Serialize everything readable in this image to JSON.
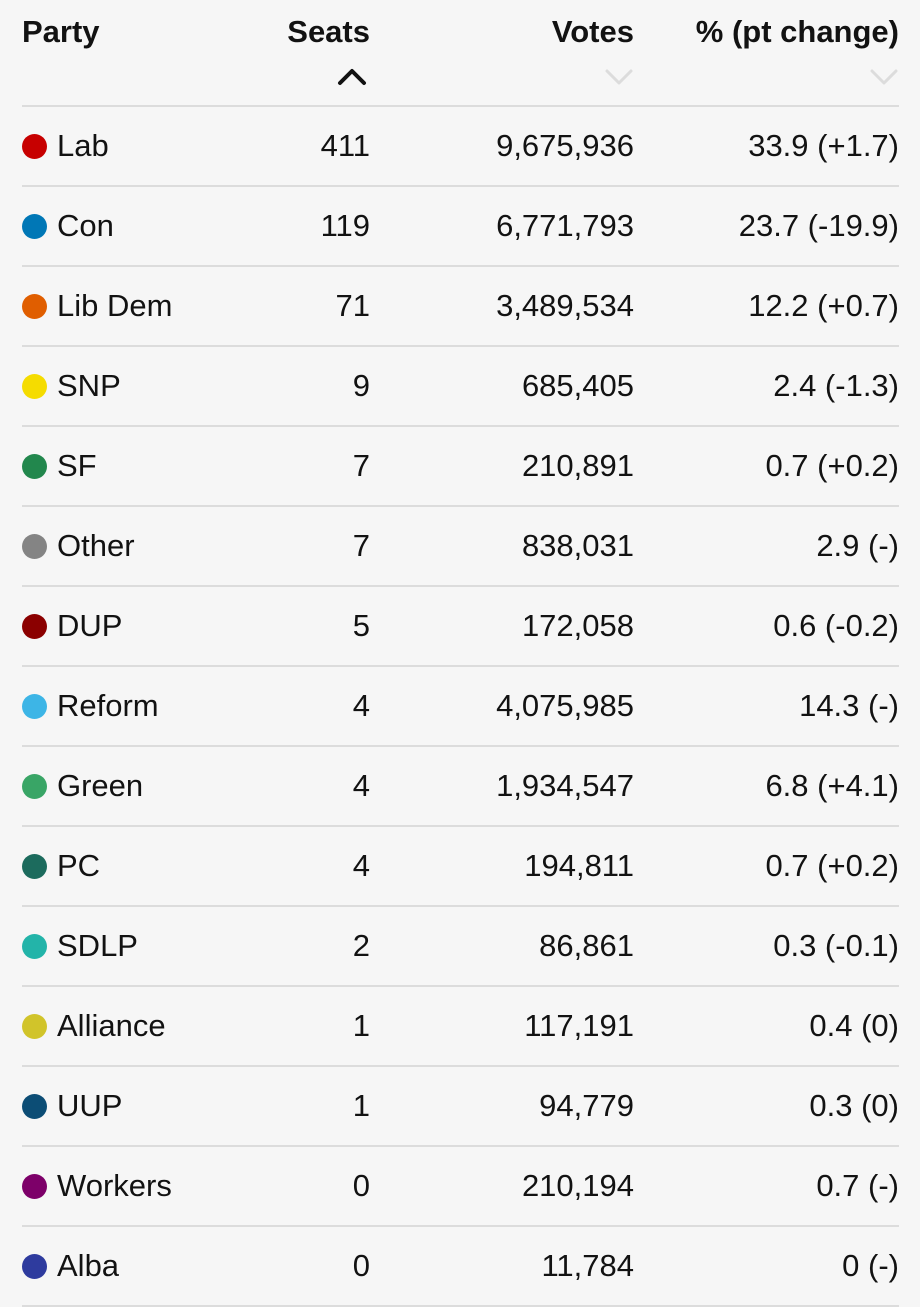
{
  "header": {
    "party_label": "Party",
    "seats_label": "Seats",
    "votes_label": "Votes",
    "pct_label": "% (pt change)"
  },
  "sort": {
    "active_column": "seats",
    "active_color": "#121212",
    "inactive_color": "#dcdcdc",
    "icons": {
      "seats": "chevron-up-icon",
      "votes": "chevron-down-icon",
      "pct": "chevron-down-icon"
    }
  },
  "rows": [
    {
      "party": "Lab",
      "color": "#c70000",
      "seats": "411",
      "votes": "9,675,936",
      "pct": "33.9 (+1.7)"
    },
    {
      "party": "Con",
      "color": "#0077b6",
      "seats": "119",
      "votes": "6,771,793",
      "pct": "23.7 (-19.9)"
    },
    {
      "party": "Lib Dem",
      "color": "#e05e00",
      "seats": "71",
      "votes": "3,489,534",
      "pct": "12.2 (+0.7)"
    },
    {
      "party": "SNP",
      "color": "#f5dc00",
      "seats": "9",
      "votes": "685,405",
      "pct": "2.4 (-1.3)"
    },
    {
      "party": "SF",
      "color": "#22874d",
      "seats": "7",
      "votes": "210,891",
      "pct": "0.7 (+0.2)"
    },
    {
      "party": "Other",
      "color": "#848484",
      "seats": "7",
      "votes": "838,031",
      "pct": "2.9 (-)"
    },
    {
      "party": "DUP",
      "color": "#8b0000",
      "seats": "5",
      "votes": "172,058",
      "pct": "0.6 (-0.2)"
    },
    {
      "party": "Reform",
      "color": "#3db5e6",
      "seats": "4",
      "votes": "4,075,985",
      "pct": "14.3 (-)"
    },
    {
      "party": "Green",
      "color": "#39a566",
      "seats": "4",
      "votes": "1,934,547",
      "pct": "6.8 (+4.1)"
    },
    {
      "party": "PC",
      "color": "#1c6b5d",
      "seats": "4",
      "votes": "194,811",
      "pct": "0.7 (+0.2)"
    },
    {
      "party": "SDLP",
      "color": "#23b4a9",
      "seats": "2",
      "votes": "86,861",
      "pct": "0.3 (-0.1)"
    },
    {
      "party": "Alliance",
      "color": "#d1c42a",
      "seats": "1",
      "votes": "117,191",
      "pct": "0.4 (0)"
    },
    {
      "party": "UUP",
      "color": "#0c4d75",
      "seats": "1",
      "votes": "94,779",
      "pct": "0.3 (0)"
    },
    {
      "party": "Workers",
      "color": "#7d0069",
      "seats": "0",
      "votes": "210,194",
      "pct": "0.7 (-)"
    },
    {
      "party": "Alba",
      "color": "#2e3b9e",
      "seats": "0",
      "votes": "11,784",
      "pct": "0 (-)"
    }
  ]
}
